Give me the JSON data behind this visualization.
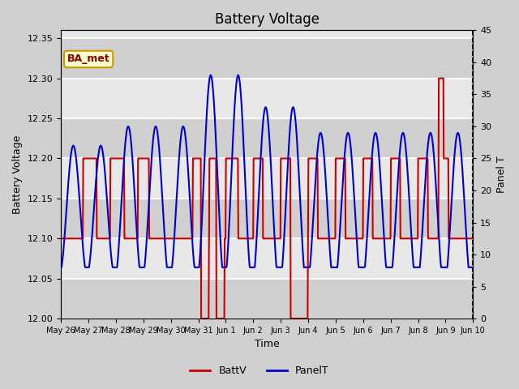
{
  "title": "Battery Voltage",
  "xlabel": "Time",
  "ylabel_left": "Battery Voltage",
  "ylabel_right": "Panel T",
  "ylim_left": [
    12.0,
    12.36
  ],
  "ylim_right": [
    0,
    45
  ],
  "yticks_left": [
    12.0,
    12.05,
    12.1,
    12.15,
    12.2,
    12.25,
    12.3,
    12.35
  ],
  "yticks_right": [
    0,
    5,
    10,
    15,
    20,
    25,
    30,
    35,
    40,
    45
  ],
  "x_tick_labels": [
    "May 26",
    "May 27",
    "May 28",
    "May 29",
    "May 30",
    "May 31",
    "Jun 1",
    "Jun 2",
    "Jun 3",
    "Jun 4",
    "Jun 5",
    "Jun 6",
    "Jun 7",
    "Jun 8",
    "Jun 9",
    "Jun 10"
  ],
  "fig_bg_color": "#d0d0d0",
  "plot_bg_color": "#e8e8e8",
  "stripe_color": "#d0d0d0",
  "grid_color": "#ffffff",
  "batt_color": "#cc0000",
  "panel_color": "#0000cc",
  "annotation_text": "BA_met",
  "annotation_fg": "#8b0000",
  "annotation_bg": "#ffffcc",
  "annotation_border": "#cc9900",
  "title_fontsize": 12,
  "label_fontsize": 9,
  "tick_fontsize": 8,
  "xtick_fontsize": 7
}
